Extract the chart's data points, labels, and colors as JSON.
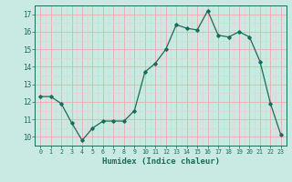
{
  "x": [
    0,
    1,
    2,
    3,
    4,
    5,
    6,
    7,
    8,
    9,
    10,
    11,
    12,
    13,
    14,
    15,
    16,
    17,
    18,
    19,
    20,
    21,
    22,
    23
  ],
  "y": [
    12.3,
    12.3,
    11.9,
    10.8,
    9.8,
    10.5,
    10.9,
    10.9,
    10.9,
    11.5,
    13.7,
    14.2,
    15.0,
    16.4,
    16.2,
    16.1,
    17.2,
    15.8,
    15.7,
    16.0,
    15.7,
    14.3,
    11.9,
    10.1
  ],
  "xlabel": "Humidex (Indice chaleur)",
  "bg_color": "#c8eae2",
  "line_color": "#1a6b5a",
  "major_grid_color": "#f0c8c8",
  "minor_grid_color": "#e8e0e0",
  "xlim": [
    -0.5,
    23.5
  ],
  "ylim": [
    9.5,
    17.5
  ],
  "yticks": [
    10,
    11,
    12,
    13,
    14,
    15,
    16,
    17
  ],
  "xticks": [
    0,
    1,
    2,
    3,
    4,
    5,
    6,
    7,
    8,
    9,
    10,
    11,
    12,
    13,
    14,
    15,
    16,
    17,
    18,
    19,
    20,
    21,
    22,
    23
  ]
}
